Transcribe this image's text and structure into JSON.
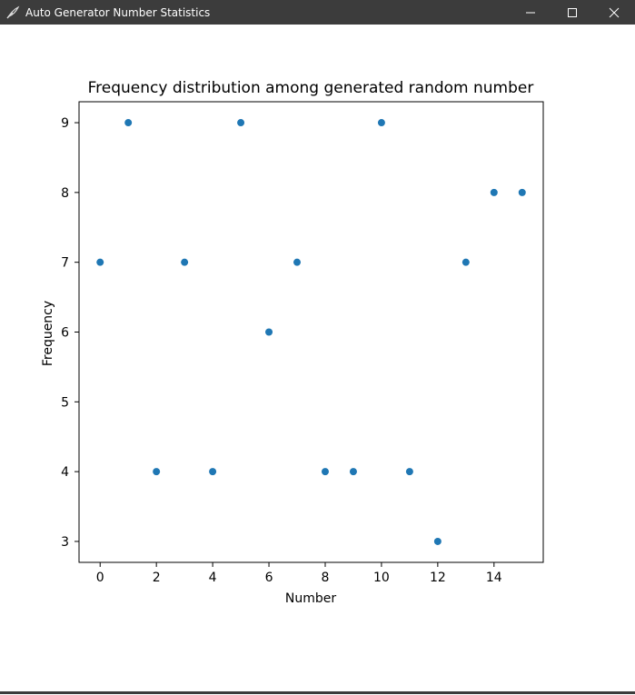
{
  "window": {
    "title": "Auto Generator Number Statistics",
    "icon": "feather-icon",
    "controls": [
      "minimize-icon",
      "maximize-icon",
      "close-icon"
    ]
  },
  "chart_data": {
    "type": "scatter",
    "title": "Frequency distribution among generated random number",
    "xlabel": "Number",
    "ylabel": "Frequency",
    "x": [
      0,
      1,
      2,
      3,
      4,
      5,
      6,
      7,
      8,
      9,
      10,
      11,
      12,
      13,
      14,
      15
    ],
    "y": [
      7,
      9,
      4,
      7,
      4,
      9,
      6,
      7,
      4,
      4,
      9,
      4,
      3,
      7,
      8,
      8
    ],
    "xlim": [
      -0.75,
      15.75
    ],
    "ylim": [
      2.7,
      9.3
    ],
    "xticks": [
      0,
      2,
      4,
      6,
      8,
      10,
      12,
      14
    ],
    "yticks": [
      3,
      4,
      5,
      6,
      7,
      8,
      9
    ],
    "grid": false,
    "marker_color": "#1f77b4"
  }
}
